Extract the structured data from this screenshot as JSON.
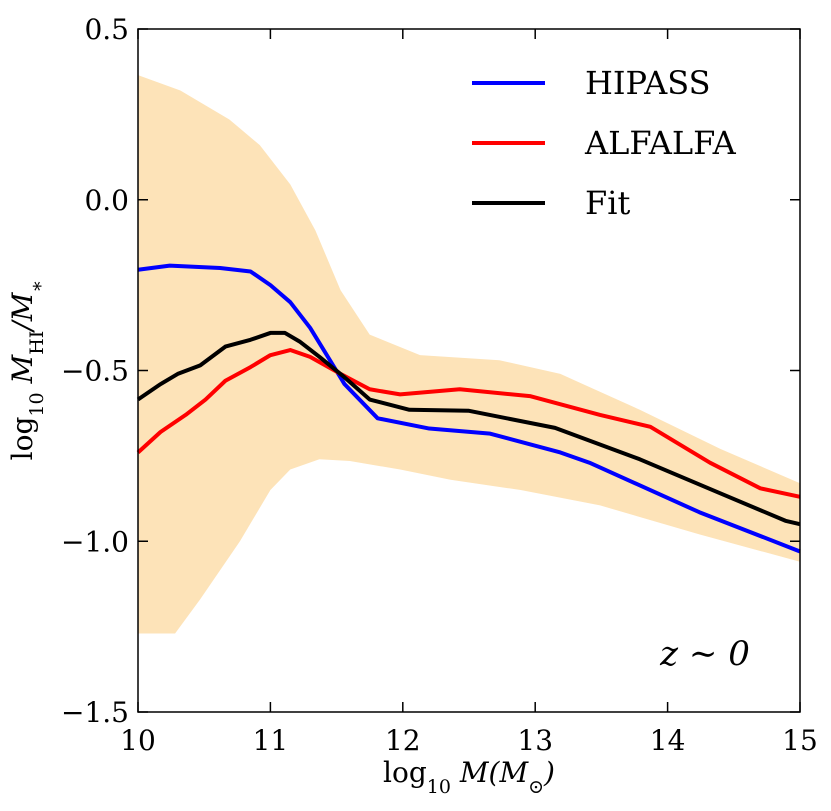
{
  "chart_data": {
    "type": "line",
    "x_label": {
      "parts": [
        "log",
        "10",
        " M(M",
        "⊙",
        ")"
      ]
    },
    "y_label": {
      "parts": [
        "log",
        "10",
        " M",
        "HI",
        "/M",
        "∗"
      ]
    },
    "annotation": "z ∼ 0",
    "xlim": [
      10,
      15
    ],
    "ylim": [
      -1.5,
      0.5
    ],
    "xticks": [
      10,
      11,
      12,
      13,
      14,
      15
    ],
    "yticks": [
      {
        "value": -1.5,
        "label": "−1.5"
      },
      {
        "value": -1.0,
        "label": "−1.0"
      },
      {
        "value": -0.5,
        "label": "−0.5"
      },
      {
        "value": 0,
        "label": "0.0"
      },
      0.5
    ],
    "legend": "upper right",
    "band": {
      "color": "#fde3b8",
      "upper": {
        "x": [
          10,
          10.32,
          10.69,
          10.92,
          11.15,
          11.34,
          11.53,
          11.75,
          12.13,
          12.73,
          13.19,
          13.79,
          14.4,
          15
        ],
        "values": [
          0.365,
          0.32,
          0.235,
          0.16,
          0.045,
          -0.09,
          -0.265,
          -0.395,
          -0.455,
          -0.47,
          -0.51,
          -0.615,
          -0.73,
          -0.83
        ]
      },
      "lower": {
        "x": [
          10,
          10.28,
          10.47,
          10.77,
          11.0,
          11.15,
          11.37,
          11.6,
          11.98,
          12.36,
          12.89,
          13.49,
          14.24,
          15
        ],
        "values": [
          -1.27,
          -1.27,
          -1.17,
          -1.0,
          -0.85,
          -0.79,
          -0.76,
          -0.765,
          -0.79,
          -0.82,
          -0.85,
          -0.895,
          -0.98,
          -1.06
        ]
      }
    },
    "series": [
      {
        "name": "HIPASS",
        "color": "#0000ff",
        "x": [
          10,
          10.24,
          10.62,
          10.85,
          11.0,
          11.15,
          11.3,
          11.45,
          11.56,
          11.81,
          12.2,
          12.66,
          13.19,
          13.41,
          14.24,
          15
        ],
        "values": [
          -0.205,
          -0.193,
          -0.2,
          -0.21,
          -0.25,
          -0.3,
          -0.375,
          -0.47,
          -0.54,
          -0.64,
          -0.67,
          -0.685,
          -0.74,
          -0.77,
          -0.915,
          -1.03
        ]
      },
      {
        "name": "ALFALFA",
        "color": "#ff0000",
        "x": [
          10,
          10.17,
          10.36,
          10.51,
          10.66,
          10.85,
          11.0,
          11.15,
          11.3,
          11.53,
          11.75,
          11.98,
          12.43,
          12.96,
          13.49,
          13.87,
          14.32,
          14.7,
          15
        ],
        "values": [
          -0.74,
          -0.68,
          -0.63,
          -0.585,
          -0.53,
          -0.49,
          -0.455,
          -0.44,
          -0.46,
          -0.51,
          -0.555,
          -0.57,
          -0.555,
          -0.575,
          -0.63,
          -0.665,
          -0.77,
          -0.845,
          -0.87
        ]
      },
      {
        "name": "Fit",
        "color": "#000000",
        "x": [
          10,
          10.17,
          10.3,
          10.47,
          10.66,
          10.85,
          11.0,
          11.11,
          11.22,
          11.37,
          11.56,
          11.75,
          12.05,
          12.5,
          13.15,
          13.79,
          14.4,
          14.89,
          15
        ],
        "values": [
          -0.585,
          -0.54,
          -0.51,
          -0.485,
          -0.43,
          -0.41,
          -0.39,
          -0.39,
          -0.415,
          -0.46,
          -0.52,
          -0.585,
          -0.615,
          -0.618,
          -0.668,
          -0.76,
          -0.86,
          -0.94,
          -0.95
        ]
      }
    ]
  }
}
